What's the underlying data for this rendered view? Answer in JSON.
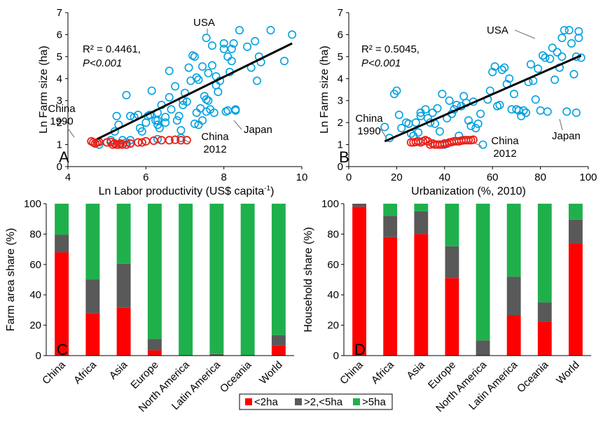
{
  "chart_data": [
    {
      "panel": "A",
      "type": "scatter",
      "xlabel": "Ln Labor productivity (US$ capita",
      "xlabel_sup": "-1",
      "xlabel_end": ")",
      "ylabel": "Ln Farm size (ha)",
      "xlim": [
        4,
        10
      ],
      "ylim": [
        0,
        7
      ],
      "xticks": [
        4,
        6,
        8,
        10
      ],
      "yticks": [
        0,
        1,
        2,
        3,
        4,
        5,
        6,
        7
      ],
      "colors": {
        "countries": "#00a0e0",
        "china": "#e8201a",
        "fit": "#000000"
      },
      "fit": {
        "x": [
          4.75,
          9.75
        ],
        "y": [
          1.25,
          5.6
        ]
      },
      "annotations": {
        "r2": "R² = 0.4461,",
        "p": "P<0.001",
        "usa": "USA",
        "japan": "Japan",
        "china_start": "China",
        "china_start_year": "1990",
        "china_end": "China",
        "china_end_year": "2012"
      },
      "series_countries": [
        [
          4.8,
          1.0
        ],
        [
          5.0,
          1.1
        ],
        [
          5.1,
          1.2
        ],
        [
          5.2,
          1.6
        ],
        [
          5.25,
          2.3
        ],
        [
          5.3,
          1.9
        ],
        [
          5.4,
          1.2
        ],
        [
          5.5,
          3.25
        ],
        [
          5.5,
          1.1
        ],
        [
          5.6,
          1.2
        ],
        [
          5.6,
          2.3
        ],
        [
          5.7,
          2.25
        ],
        [
          5.8,
          2.35
        ],
        [
          5.85,
          1.75
        ],
        [
          5.9,
          1.6
        ],
        [
          6.0,
          2.0
        ],
        [
          6.05,
          2.3
        ],
        [
          6.1,
          2.35
        ],
        [
          6.15,
          3.45
        ],
        [
          6.25,
          2.1
        ],
        [
          6.3,
          1.25
        ],
        [
          6.3,
          2.1
        ],
        [
          6.3,
          2.45
        ],
        [
          6.3,
          1.9
        ],
        [
          6.35,
          1.75
        ],
        [
          6.4,
          2.8
        ],
        [
          6.5,
          2.0
        ],
        [
          6.5,
          2.25
        ],
        [
          6.6,
          4.35
        ],
        [
          6.6,
          3.15
        ],
        [
          6.65,
          2.6
        ],
        [
          6.75,
          3.65
        ],
        [
          6.8,
          2.1
        ],
        [
          6.85,
          2.3
        ],
        [
          6.9,
          1.65
        ],
        [
          6.9,
          1.3
        ],
        [
          6.95,
          2.8
        ],
        [
          6.95,
          3.0
        ],
        [
          7.0,
          3.35
        ],
        [
          7.05,
          2.95
        ],
        [
          7.1,
          4.5
        ],
        [
          7.15,
          3.9
        ],
        [
          7.2,
          5.05
        ],
        [
          7.25,
          5.0
        ],
        [
          7.25,
          1.95
        ],
        [
          7.3,
          4.05
        ],
        [
          7.3,
          2.45
        ],
        [
          7.35,
          3.95
        ],
        [
          7.35,
          1.9
        ],
        [
          7.4,
          2.65
        ],
        [
          7.45,
          4.55
        ],
        [
          7.45,
          2.1
        ],
        [
          7.5,
          3.2
        ],
        [
          7.55,
          3.05
        ],
        [
          7.55,
          2.5
        ],
        [
          7.55,
          5.85
        ],
        [
          7.6,
          4.25
        ],
        [
          7.6,
          3.0
        ],
        [
          7.65,
          2.6
        ],
        [
          7.7,
          4.6
        ],
        [
          7.7,
          5.5
        ],
        [
          7.75,
          2.45
        ],
        [
          7.8,
          3.7
        ],
        [
          7.8,
          4.1
        ],
        [
          7.85,
          3.4
        ],
        [
          7.9,
          3.9
        ],
        [
          8.0,
          5.35
        ],
        [
          8.0,
          5.6
        ],
        [
          8.05,
          2.5
        ],
        [
          8.1,
          2.55
        ],
        [
          8.1,
          5.0
        ],
        [
          8.15,
          4.3
        ],
        [
          8.2,
          5.35
        ],
        [
          8.2,
          4.8
        ],
        [
          8.25,
          5.6
        ],
        [
          8.3,
          2.55
        ],
        [
          8.3,
          2.6
        ],
        [
          8.4,
          6.2
        ],
        [
          8.6,
          5.45
        ],
        [
          8.7,
          4.5
        ],
        [
          8.8,
          5.7
        ],
        [
          8.85,
          3.9
        ],
        [
          8.9,
          5.0
        ],
        [
          8.95,
          4.75
        ],
        [
          9.2,
          6.2
        ],
        [
          9.55,
          4.8
        ],
        [
          9.75,
          6.0
        ]
      ],
      "series_china": [
        [
          4.6,
          1.15
        ],
        [
          4.65,
          1.1
        ],
        [
          4.7,
          1.05
        ],
        [
          4.75,
          1.1
        ],
        [
          4.8,
          1.12
        ],
        [
          5.0,
          1.1
        ],
        [
          5.1,
          1.12
        ],
        [
          5.15,
          1.0
        ],
        [
          5.2,
          1.05
        ],
        [
          5.25,
          1.0
        ],
        [
          5.3,
          1.0
        ],
        [
          5.35,
          1.05
        ],
        [
          5.4,
          1.0
        ],
        [
          5.5,
          1.0
        ],
        [
          5.6,
          1.05
        ],
        [
          5.8,
          1.1
        ],
        [
          5.9,
          1.1
        ],
        [
          6.0,
          1.15
        ],
        [
          6.2,
          1.18
        ],
        [
          6.4,
          1.2
        ],
        [
          6.6,
          1.2
        ],
        [
          6.75,
          1.22
        ],
        [
          6.9,
          1.2
        ],
        [
          7.05,
          1.2
        ]
      ]
    },
    {
      "panel": "B",
      "type": "scatter",
      "xlabel": "Urbanization (%, 2010)",
      "ylabel": "Ln Farm size (ha)",
      "xlim": [
        0,
        100
      ],
      "ylim": [
        0,
        7
      ],
      "xticks": [
        0,
        20,
        40,
        60,
        80,
        100
      ],
      "yticks": [
        0,
        1,
        2,
        3,
        4,
        5,
        6,
        7
      ],
      "colors": {
        "countries": "#00a0e0",
        "china": "#e8201a",
        "fit": "#000000"
      },
      "fit": {
        "x": [
          15,
          97
        ],
        "y": [
          1.15,
          5.05
        ]
      },
      "annotations": {
        "r2": "R² = 0.5045,",
        "p": "P<0.001",
        "usa": "USA",
        "japan": "Japan",
        "china_start": "China",
        "china_start_year": "1990",
        "china_end": "China",
        "china_end_year": "2012"
      },
      "series_countries": [
        [
          15,
          1.8
        ],
        [
          17,
          1.3
        ],
        [
          19,
          3.3
        ],
        [
          20,
          3.45
        ],
        [
          21,
          2.35
        ],
        [
          22,
          1.75
        ],
        [
          24,
          2.0
        ],
        [
          25,
          1.95
        ],
        [
          26,
          1.5
        ],
        [
          27,
          1.4
        ],
        [
          28,
          2.0
        ],
        [
          29,
          1.55
        ],
        [
          30,
          2.3
        ],
        [
          30,
          2.45
        ],
        [
          32,
          2.6
        ],
        [
          33,
          2.2
        ],
        [
          34,
          2.0
        ],
        [
          35,
          2.45
        ],
        [
          36,
          1.95
        ],
        [
          37,
          2.65
        ],
        [
          38,
          1.6
        ],
        [
          39,
          3.3
        ],
        [
          40,
          1.0
        ],
        [
          41,
          2.2
        ],
        [
          42,
          3.0
        ],
        [
          43,
          2.4
        ],
        [
          44,
          2.6
        ],
        [
          45,
          2.8
        ],
        [
          46,
          1.4
        ],
        [
          47,
          2.75
        ],
        [
          48,
          3.2
        ],
        [
          49,
          2.9
        ],
        [
          50,
          2.1
        ],
        [
          51,
          1.85
        ],
        [
          52,
          2.95
        ],
        [
          53,
          1.75
        ],
        [
          54,
          1.95
        ],
        [
          55,
          2.4
        ],
        [
          56,
          1.0
        ],
        [
          58,
          3.05
        ],
        [
          59,
          3.45
        ],
        [
          60,
          4.3
        ],
        [
          61,
          4.55
        ],
        [
          62,
          2.75
        ],
        [
          63,
          2.8
        ],
        [
          64,
          4.4
        ],
        [
          65,
          4.5
        ],
        [
          66,
          3.75
        ],
        [
          67,
          4.0
        ],
        [
          68,
          2.6
        ],
        [
          69,
          3.3
        ],
        [
          70,
          2.6
        ],
        [
          71,
          2.55
        ],
        [
          72,
          2.3
        ],
        [
          73,
          2.55
        ],
        [
          74,
          2.45
        ],
        [
          75,
          3.85
        ],
        [
          76,
          4.65
        ],
        [
          77,
          3.9
        ],
        [
          78,
          3.05
        ],
        [
          79,
          4.45
        ],
        [
          80,
          2.55
        ],
        [
          81,
          5.05
        ],
        [
          82,
          4.95
        ],
        [
          83,
          2.5
        ],
        [
          84,
          4.9
        ],
        [
          85,
          5.4
        ],
        [
          86,
          3.95
        ],
        [
          87,
          5.2
        ],
        [
          88,
          4.5
        ],
        [
          89,
          5.85
        ],
        [
          89,
          5.0
        ],
        [
          90,
          6.2
        ],
        [
          91,
          2.5
        ],
        [
          92,
          6.2
        ],
        [
          93,
          5.6
        ],
        [
          94,
          4.2
        ],
        [
          95,
          2.45
        ],
        [
          95,
          5.0
        ],
        [
          96,
          6.15
        ],
        [
          96,
          5.85
        ],
        [
          97,
          4.95
        ]
      ],
      "series_china": [
        [
          26,
          1.1
        ],
        [
          27,
          1.1
        ],
        [
          28,
          1.12
        ],
        [
          29,
          1.15
        ],
        [
          30,
          1.1
        ],
        [
          31,
          1.15
        ],
        [
          32,
          1.2
        ],
        [
          33,
          1.15
        ],
        [
          34,
          1.0
        ],
        [
          35,
          1.05
        ],
        [
          36,
          1.0
        ],
        [
          37,
          1.0
        ],
        [
          38,
          1.0
        ],
        [
          39,
          1.0
        ],
        [
          40,
          1.05
        ],
        [
          41,
          1.05
        ],
        [
          42,
          1.1
        ],
        [
          43,
          1.12
        ],
        [
          44,
          1.15
        ],
        [
          45,
          1.15
        ],
        [
          46,
          1.15
        ],
        [
          47,
          1.18
        ],
        [
          48,
          1.2
        ],
        [
          49,
          1.2
        ],
        [
          50,
          1.2
        ],
        [
          51,
          1.2
        ],
        [
          52,
          1.22
        ]
      ]
    },
    {
      "panel": "C",
      "type": "bar",
      "stacked": true,
      "ylabel": "Farm area share (%)",
      "ylim": [
        0,
        100
      ],
      "yticks": [
        0,
        20,
        40,
        60,
        80,
        100
      ],
      "categories": [
        "China",
        "Africa",
        "Asia",
        "Europe",
        "North America",
        "Latin America",
        "Oceania",
        "World"
      ],
      "series": [
        {
          "name": "<2ha",
          "color": "#ff0000",
          "values": [
            68,
            28,
            31.5,
            3.5,
            0,
            0,
            0,
            6.5
          ]
        },
        {
          "name": ">2,<5ha",
          "color": "#595959",
          "values": [
            11.5,
            22,
            29,
            7.5,
            0,
            1,
            0,
            7
          ]
        },
        {
          "name": ">5ha",
          "color": "#1fb04c",
          "values": [
            20.5,
            50,
            39.5,
            89,
            100,
            99,
            100,
            86.5
          ]
        }
      ]
    },
    {
      "panel": "D",
      "type": "bar",
      "stacked": true,
      "ylabel": "Household share (%)",
      "ylim": [
        0,
        100
      ],
      "yticks": [
        0,
        20,
        40,
        60,
        80,
        100
      ],
      "categories": [
        "China",
        "Africa",
        "Asia",
        "Europe",
        "North America",
        "Latin America",
        "Oceania",
        "World"
      ],
      "series": [
        {
          "name": "<2ha",
          "color": "#ff0000",
          "values": [
            98,
            78,
            80,
            51,
            0,
            26.5,
            22.5,
            74
          ]
        },
        {
          "name": ">2,<5ha",
          "color": "#595959",
          "values": [
            2,
            14,
            15,
            21,
            10,
            25.5,
            12.5,
            15.5
          ]
        },
        {
          "name": ">5ha",
          "color": "#1fb04c",
          "values": [
            0,
            8,
            5,
            28,
            90,
            48,
            65,
            10.5
          ]
        }
      ]
    }
  ],
  "legend": {
    "items": [
      "<2ha",
      ">2,<5ha",
      ">5ha"
    ],
    "placement": "bottom-center"
  }
}
